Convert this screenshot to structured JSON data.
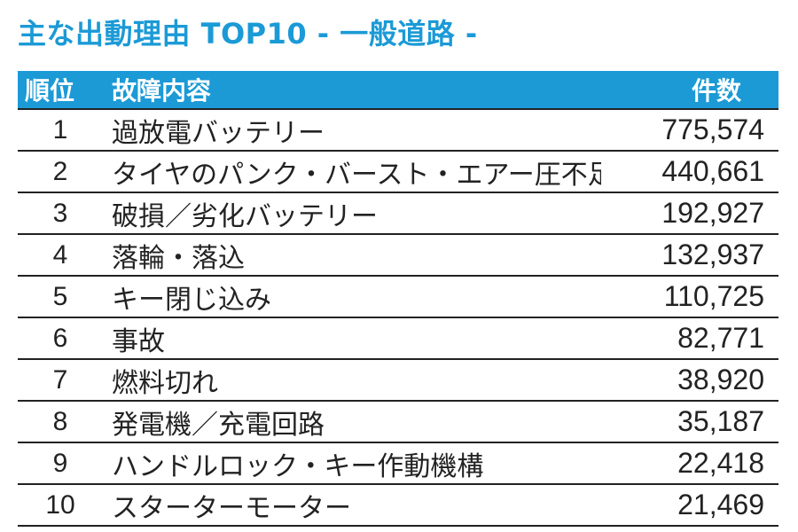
{
  "title": "主な出動理由 TOP10 - 一般道路 -",
  "header": {
    "rank": "順位",
    "reason": "故障内容",
    "count": "件数"
  },
  "rows": [
    {
      "rank": "1",
      "reason": "過放電バッテリー",
      "count": "775,574"
    },
    {
      "rank": "2",
      "reason": "タイヤのパンク・バースト・エアー圧不足",
      "count": "440,661"
    },
    {
      "rank": "3",
      "reason": "破損／劣化バッテリー",
      "count": "192,927"
    },
    {
      "rank": "4",
      "reason": "落輪・落込",
      "count": "132,937"
    },
    {
      "rank": "5",
      "reason": "キー閉じ込み",
      "count": "110,725"
    },
    {
      "rank": "6",
      "reason": "事故",
      "count": "82,771"
    },
    {
      "rank": "7",
      "reason": "燃料切れ",
      "count": "38,920"
    },
    {
      "rank": "8",
      "reason": "発電機／充電回路",
      "count": "35,187"
    },
    {
      "rank": "9",
      "reason": "ハンドルロック・キー作動機構",
      "count": "22,418"
    },
    {
      "rank": "10",
      "reason": "スターターモーター",
      "count": "21,469"
    }
  ],
  "colors": {
    "accent": "#1b9ad6",
    "text": "#222222",
    "header_text": "#ffffff"
  }
}
